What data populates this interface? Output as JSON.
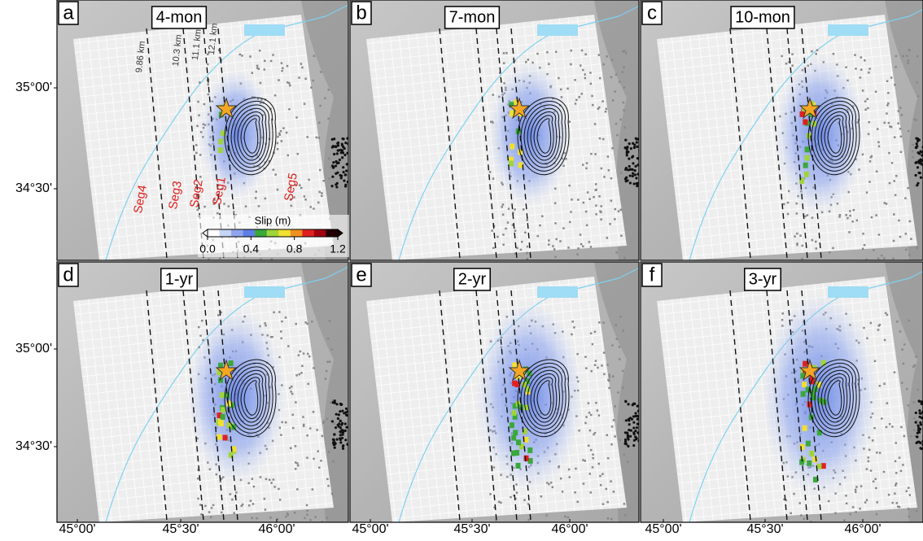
{
  "panels": [
    {
      "letter": "a",
      "label": "4-mon"
    },
    {
      "letter": "b",
      "label": "7-mon"
    },
    {
      "letter": "c",
      "label": "10-mon"
    },
    {
      "letter": "d",
      "label": "1-yr"
    },
    {
      "letter": "e",
      "label": "2-yr"
    },
    {
      "letter": "f",
      "label": "3-yr"
    }
  ],
  "lat_ticks": [
    "35°00'",
    "34°30'"
  ],
  "lon_ticks": [
    "45°00'",
    "45°30'",
    "46°00'"
  ],
  "fault_distances": [
    "9.86 km",
    "10.3 km",
    "11.1 km",
    "12.1 km"
  ],
  "segments": [
    "Seg4",
    "Seg3",
    "Seg2",
    "Seg1",
    "Seg5"
  ],
  "colorbar": {
    "title": "Slip (m)",
    "lim": [
      0,
      1.2
    ],
    "ticks": [
      {
        "value": 0,
        "label": "0.0"
      },
      0.4,
      0.8,
      1.2
    ],
    "colors": [
      "#ffffff",
      "#c6d4f5",
      "#8fa6ee",
      "#5f7fe6",
      "#3aa83a",
      "#9fd43a",
      "#f0e030",
      "#f09020",
      "#e02020",
      "#a00010",
      "#200000"
    ]
  }
}
